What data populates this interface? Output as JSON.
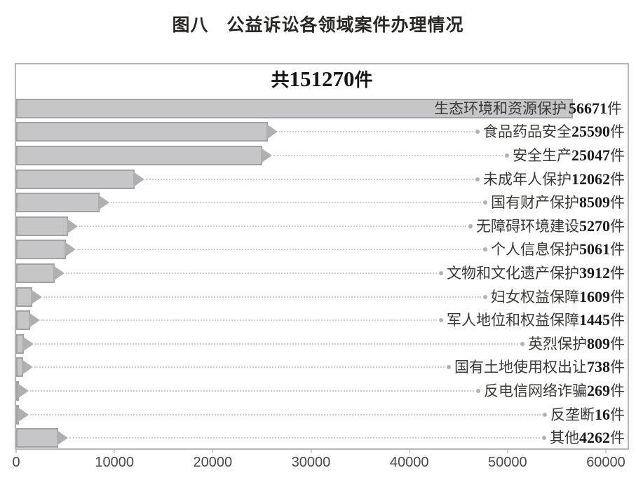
{
  "figure": {
    "title": "图八　公益诉讼各领域案件办理情况"
  },
  "chart_data": {
    "type": "bar",
    "orientation": "horizontal",
    "title": "图八　公益诉讼各领域案件办理情况",
    "subtitle": {
      "prefix": "共",
      "total": "151270",
      "suffix": "件"
    },
    "total_cases": 151270,
    "unit": "件",
    "xlabel": "",
    "ylabel": "",
    "xlim": [
      0,
      60000
    ],
    "xticks": [
      0,
      10000,
      20000,
      30000,
      40000,
      50000,
      60000
    ],
    "grid": false,
    "legend": "none",
    "bar_color": "#c6c6c8",
    "bar_border_color": "#a2a2a4",
    "categories": [
      "生态环境和资源保护",
      "食品药品安全",
      "安全生产",
      "未成年人保护",
      "国有财产保护",
      "无障碍环境建设",
      "个人信息保护",
      "文物和文化遗产保护",
      "妇女权益保障",
      "军人地位和权益保障",
      "英烈保护",
      "国有土地使用权出让",
      "反电信网络诈骗",
      "反垄断",
      "其他"
    ],
    "values": [
      56671,
      25590,
      25047,
      12062,
      8509,
      5270,
      5061,
      3912,
      1609,
      1445,
      809,
      738,
      269,
      16,
      4262
    ],
    "rows": [
      {
        "label": "生态环境和资源保护",
        "value": "56671",
        "v": 56671
      },
      {
        "label": "食品药品安全",
        "value": "25590",
        "v": 25590
      },
      {
        "label": "安全生产",
        "value": "25047",
        "v": 25047
      },
      {
        "label": "未成年人保护",
        "value": "12062",
        "v": 12062
      },
      {
        "label": "国有财产保护",
        "value": "8509",
        "v": 8509
      },
      {
        "label": "无障碍环境建设",
        "value": "5270",
        "v": 5270
      },
      {
        "label": "个人信息保护",
        "value": "5061",
        "v": 5061
      },
      {
        "label": "文物和文化遗产保护",
        "value": "3912",
        "v": 3912
      },
      {
        "label": "妇女权益保障",
        "value": "1609",
        "v": 1609
      },
      {
        "label": "军人地位和权益保障",
        "value": "1445",
        "v": 1445
      },
      {
        "label": "英烈保护",
        "value": "809",
        "v": 809
      },
      {
        "label": "国有土地使用权出让",
        "value": "738",
        "v": 738
      },
      {
        "label": "反电信网络诈骗",
        "value": "269",
        "v": 269
      },
      {
        "label": "反垄断",
        "value": "16",
        "v": 16
      },
      {
        "label": "其他",
        "value": "4262",
        "v": 4262
      }
    ]
  }
}
